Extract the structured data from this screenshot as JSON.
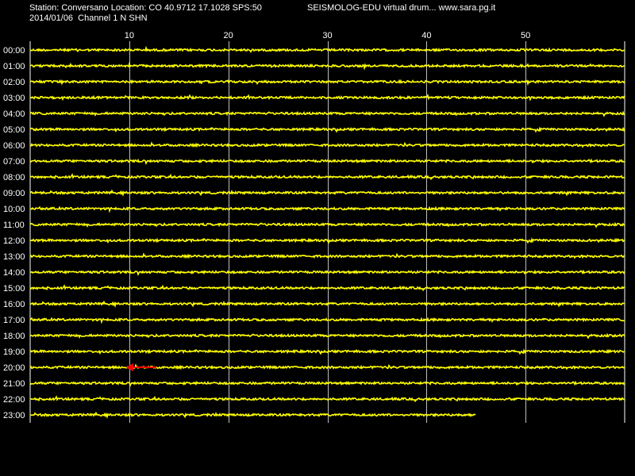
{
  "header": {
    "station_line": "Station: Conversano Location: CO 40.9712 17.1028 SPS:50",
    "date_line": "2014/01/06  Channel 1 N SHN",
    "title": "SEISMOLOG-EDU virtual drum... www.sara.pg.it"
  },
  "chart_data": {
    "type": "line",
    "x_ticks": [
      "10",
      "20",
      "30",
      "40",
      "50"
    ],
    "x_range": [
      0,
      60
    ],
    "rows": [
      "00:00",
      "01:00",
      "02:00",
      "03:00",
      "04:00",
      "05:00",
      "06:00",
      "07:00",
      "08:00",
      "09:00",
      "10:00",
      "11:00",
      "12:00",
      "13:00",
      "14:00",
      "15:00",
      "16:00",
      "17:00",
      "18:00",
      "19:00",
      "20:00",
      "21:00",
      "22:00",
      "23:00"
    ],
    "last_row_end_minute": 45,
    "marker": {
      "row": "20:00",
      "minute": 10,
      "color": "#ff0000"
    },
    "grid": true,
    "trace_color": "#ffff00",
    "background": "#000000",
    "grid_color": "#ffffff"
  }
}
